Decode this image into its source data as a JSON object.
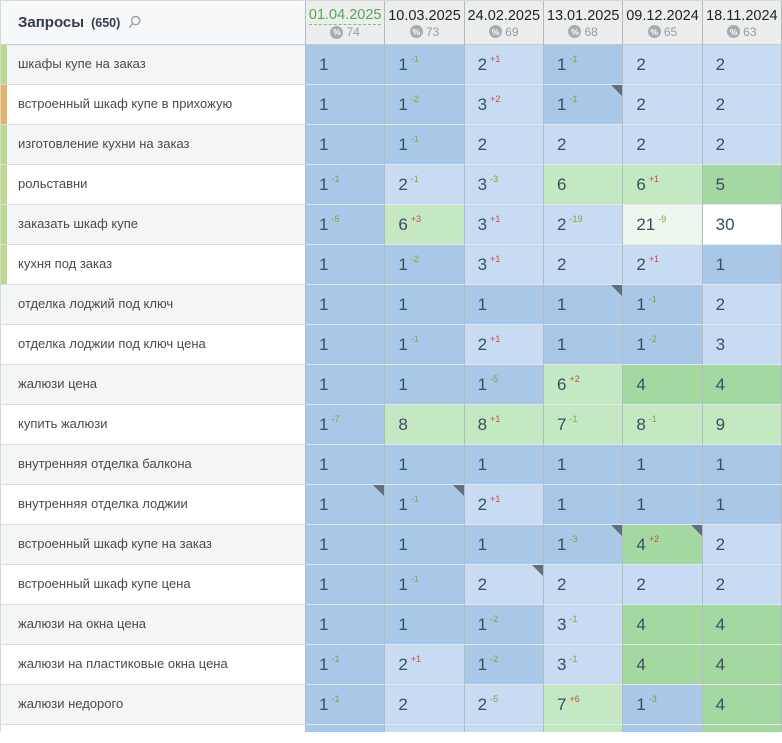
{
  "header": {
    "title": "Запросы",
    "count": "(650)",
    "search_icon": "magnifier",
    "percent_icon": "%",
    "columns": [
      {
        "date": "01.04.2025",
        "percent": "74",
        "selected": true
      },
      {
        "date": "10.03.2025",
        "percent": "73",
        "selected": false
      },
      {
        "date": "24.02.2025",
        "percent": "69",
        "selected": false
      },
      {
        "date": "13.01.2025",
        "percent": "68",
        "selected": false
      },
      {
        "date": "09.12.2024",
        "percent": "65",
        "selected": false
      },
      {
        "date": "18.11.2024",
        "percent": "63",
        "selected": false
      }
    ]
  },
  "colors": {
    "position_top1": "#a9c7e6",
    "position_top3": "#c7dcf2",
    "position_top5": "#a4d8a1",
    "position_top10": "#c4e8c1",
    "position_top30": "#eef7ee",
    "position_none": "#ffffff",
    "delta_improved": "#74a843",
    "delta_worsened": "#c05145",
    "selected_date": "#55a555",
    "strip_green": "#bdd98b",
    "strip_orange": "#e7b268",
    "note_marker": "#5e6f80"
  },
  "rows": [
    {
      "keyword": "шкафы купе на заказ",
      "strip": "green",
      "cells": [
        {
          "value": "1",
          "tone": "b1"
        },
        {
          "value": "1",
          "delta": "-1",
          "tone": "b1"
        },
        {
          "value": "2",
          "delta": "+1",
          "tone": "b2"
        },
        {
          "value": "1",
          "delta": "-1",
          "tone": "b1"
        },
        {
          "value": "2",
          "tone": "b2"
        },
        {
          "value": "2",
          "tone": "b2"
        }
      ]
    },
    {
      "keyword": "встроенный шкаф купе в прихожую",
      "strip": "orange",
      "cells": [
        {
          "value": "1",
          "tone": "b1"
        },
        {
          "value": "1",
          "delta": "-2",
          "tone": "b1"
        },
        {
          "value": "3",
          "delta": "+2",
          "tone": "b2"
        },
        {
          "value": "1",
          "delta": "-1",
          "tone": "b1",
          "marker": true
        },
        {
          "value": "2",
          "tone": "b2"
        },
        {
          "value": "2",
          "tone": "b2"
        }
      ]
    },
    {
      "keyword": "изготовление кухни на заказ",
      "strip": "green",
      "cells": [
        {
          "value": "1",
          "tone": "b1"
        },
        {
          "value": "1",
          "delta": "-1",
          "tone": "b1"
        },
        {
          "value": "2",
          "tone": "b2"
        },
        {
          "value": "2",
          "tone": "b2"
        },
        {
          "value": "2",
          "tone": "b2"
        },
        {
          "value": "2",
          "tone": "b2"
        }
      ]
    },
    {
      "keyword": "рольставни",
      "strip": "green",
      "cells": [
        {
          "value": "1",
          "delta": "-1",
          "tone": "b1"
        },
        {
          "value": "2",
          "delta": "-1",
          "tone": "b2"
        },
        {
          "value": "3",
          "delta": "-3",
          "tone": "b2"
        },
        {
          "value": "6",
          "tone": "g2"
        },
        {
          "value": "6",
          "delta": "+1",
          "tone": "g2"
        },
        {
          "value": "5",
          "tone": "g1"
        }
      ]
    },
    {
      "keyword": "заказать шкаф купе",
      "strip": "green",
      "cells": [
        {
          "value": "1",
          "delta": "-5",
          "tone": "b1"
        },
        {
          "value": "6",
          "delta": "+3",
          "tone": "g2"
        },
        {
          "value": "3",
          "delta": "+1",
          "tone": "b2"
        },
        {
          "value": "2",
          "delta": "-19",
          "tone": "b2"
        },
        {
          "value": "21",
          "delta": "-9",
          "tone": "g3"
        },
        {
          "value": "30",
          "tone": "w"
        }
      ]
    },
    {
      "keyword": "кухня под заказ",
      "strip": "green",
      "cells": [
        {
          "value": "1",
          "tone": "b1"
        },
        {
          "value": "1",
          "delta": "-2",
          "tone": "b1"
        },
        {
          "value": "3",
          "delta": "+1",
          "tone": "b2"
        },
        {
          "value": "2",
          "tone": "b2"
        },
        {
          "value": "2",
          "delta": "+1",
          "tone": "b2"
        },
        {
          "value": "1",
          "tone": "b1"
        }
      ]
    },
    {
      "keyword": "отделка лоджий под ключ",
      "strip": null,
      "cells": [
        {
          "value": "1",
          "tone": "b1"
        },
        {
          "value": "1",
          "tone": "b1"
        },
        {
          "value": "1",
          "tone": "b1"
        },
        {
          "value": "1",
          "tone": "b1",
          "marker": true
        },
        {
          "value": "1",
          "delta": "-1",
          "tone": "b1"
        },
        {
          "value": "2",
          "tone": "b2"
        }
      ]
    },
    {
      "keyword": "отделка лоджии под ключ цена",
      "strip": null,
      "cells": [
        {
          "value": "1",
          "tone": "b1"
        },
        {
          "value": "1",
          "delta": "-1",
          "tone": "b1"
        },
        {
          "value": "2",
          "delta": "+1",
          "tone": "b2"
        },
        {
          "value": "1",
          "tone": "b1"
        },
        {
          "value": "1",
          "delta": "-2",
          "tone": "b1"
        },
        {
          "value": "3",
          "tone": "b2"
        }
      ]
    },
    {
      "keyword": "жалюзи цена",
      "strip": null,
      "cells": [
        {
          "value": "1",
          "tone": "b1"
        },
        {
          "value": "1",
          "tone": "b1"
        },
        {
          "value": "1",
          "delta": "-5",
          "tone": "b1"
        },
        {
          "value": "6",
          "delta": "+2",
          "tone": "g2"
        },
        {
          "value": "4",
          "tone": "g1"
        },
        {
          "value": "4",
          "tone": "g1"
        }
      ]
    },
    {
      "keyword": "купить жалюзи",
      "strip": null,
      "cells": [
        {
          "value": "1",
          "delta": "-7",
          "tone": "b1"
        },
        {
          "value": "8",
          "tone": "g2"
        },
        {
          "value": "8",
          "delta": "+1",
          "tone": "g2"
        },
        {
          "value": "7",
          "delta": "-1",
          "tone": "g2"
        },
        {
          "value": "8",
          "delta": "-1",
          "tone": "g2"
        },
        {
          "value": "9",
          "tone": "g2"
        }
      ]
    },
    {
      "keyword": "внутренняя отделка балкона",
      "strip": null,
      "cells": [
        {
          "value": "1",
          "tone": "b1"
        },
        {
          "value": "1",
          "tone": "b1"
        },
        {
          "value": "1",
          "tone": "b1"
        },
        {
          "value": "1",
          "tone": "b1"
        },
        {
          "value": "1",
          "tone": "b1"
        },
        {
          "value": "1",
          "tone": "b1"
        }
      ]
    },
    {
      "keyword": "внутренняя отделка лоджии",
      "strip": null,
      "cells": [
        {
          "value": "1",
          "tone": "b1",
          "marker": true
        },
        {
          "value": "1",
          "delta": "-1",
          "tone": "b1",
          "marker": true
        },
        {
          "value": "2",
          "delta": "+1",
          "tone": "b2"
        },
        {
          "value": "1",
          "tone": "b1"
        },
        {
          "value": "1",
          "tone": "b1"
        },
        {
          "value": "1",
          "tone": "b1"
        }
      ]
    },
    {
      "keyword": "встроенный шкаф купе на заказ",
      "strip": null,
      "cells": [
        {
          "value": "1",
          "tone": "b1"
        },
        {
          "value": "1",
          "tone": "b1"
        },
        {
          "value": "1",
          "tone": "b1"
        },
        {
          "value": "1",
          "delta": "-3",
          "tone": "b1",
          "marker": true
        },
        {
          "value": "4",
          "delta": "+2",
          "tone": "g1",
          "marker": true
        },
        {
          "value": "2",
          "tone": "b2"
        }
      ]
    },
    {
      "keyword": "встроенный шкаф купе цена",
      "strip": null,
      "cells": [
        {
          "value": "1",
          "tone": "b1"
        },
        {
          "value": "1",
          "delta": "-1",
          "tone": "b1"
        },
        {
          "value": "2",
          "tone": "b2",
          "marker": true
        },
        {
          "value": "2",
          "tone": "b2"
        },
        {
          "value": "2",
          "tone": "b2"
        },
        {
          "value": "2",
          "tone": "b2"
        }
      ]
    },
    {
      "keyword": "жалюзи на окна цена",
      "strip": null,
      "cells": [
        {
          "value": "1",
          "tone": "b1"
        },
        {
          "value": "1",
          "tone": "b1"
        },
        {
          "value": "1",
          "delta": "-2",
          "tone": "b1"
        },
        {
          "value": "3",
          "delta": "-1",
          "tone": "b2"
        },
        {
          "value": "4",
          "tone": "g1"
        },
        {
          "value": "4",
          "tone": "g1"
        }
      ]
    },
    {
      "keyword": "жалюзи на пластиковые окна цена",
      "strip": null,
      "cells": [
        {
          "value": "1",
          "delta": "-1",
          "tone": "b1"
        },
        {
          "value": "2",
          "delta": "+1",
          "tone": "b2"
        },
        {
          "value": "1",
          "delta": "-2",
          "tone": "b1"
        },
        {
          "value": "3",
          "delta": "-1",
          "tone": "b2"
        },
        {
          "value": "4",
          "tone": "g1"
        },
        {
          "value": "4",
          "tone": "g1"
        }
      ]
    },
    {
      "keyword": "жалюзи недорого",
      "strip": null,
      "cells": [
        {
          "value": "1",
          "delta": "-1",
          "tone": "b1"
        },
        {
          "value": "2",
          "tone": "b2"
        },
        {
          "value": "2",
          "delta": "-5",
          "tone": "b2"
        },
        {
          "value": "7",
          "delta": "+6",
          "tone": "g2"
        },
        {
          "value": "1",
          "delta": "-3",
          "tone": "b1"
        },
        {
          "value": "4",
          "tone": "g1"
        }
      ]
    }
  ],
  "partial_next_row_tones": [
    "b1",
    "b2",
    "b2",
    "g2",
    "b1",
    "g1"
  ]
}
